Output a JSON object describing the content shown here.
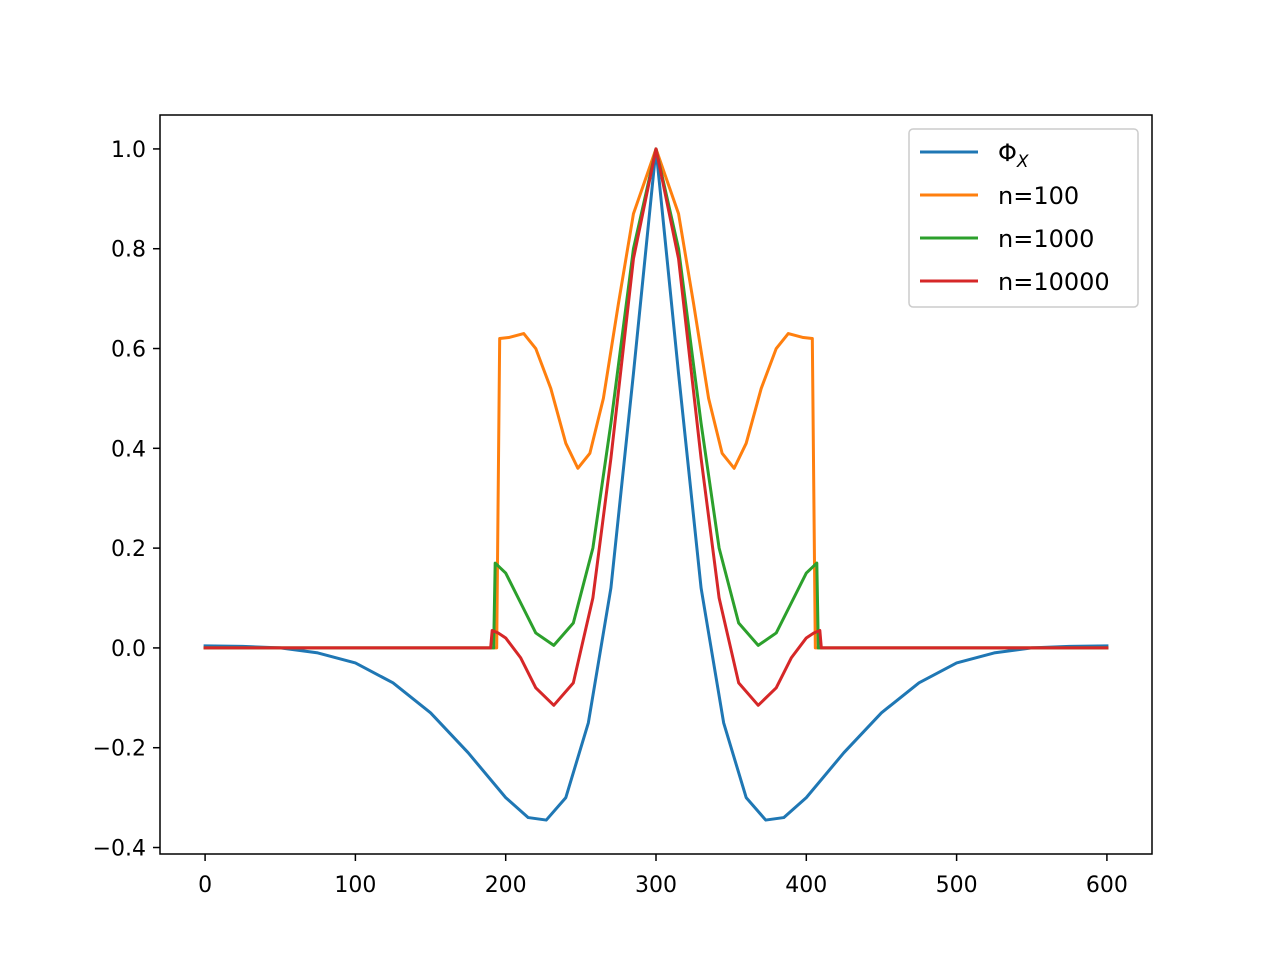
{
  "chart_data": {
    "type": "line",
    "title": "",
    "xlabel": "",
    "ylabel": "",
    "xlim": [
      -30,
      630
    ],
    "ylim": [
      -0.413,
      1.068
    ],
    "x_ticks": [
      0,
      100,
      200,
      300,
      400,
      500,
      600
    ],
    "y_ticks": [
      -0.4,
      -0.2,
      0.0,
      0.2,
      0.4,
      0.6,
      0.8,
      1.0
    ],
    "y_tick_labels": [
      "−0.4",
      "−0.2",
      "0.0",
      "0.2",
      "0.4",
      "0.6",
      "0.8",
      "1.0"
    ],
    "grid": false,
    "legend_position": "top-right",
    "series": [
      {
        "name": "ΦX",
        "color": "#1f77b4",
        "x": [
          0,
          25,
          50,
          75,
          100,
          125,
          150,
          175,
          200,
          215,
          227,
          240,
          255,
          270,
          285,
          300,
          315,
          330,
          345,
          360,
          373,
          385,
          400,
          425,
          450,
          475,
          500,
          525,
          550,
          575,
          600
        ],
        "y": [
          0.004,
          0.003,
          0.0,
          -0.01,
          -0.03,
          -0.07,
          -0.13,
          -0.21,
          -0.3,
          -0.34,
          -0.345,
          -0.3,
          -0.15,
          0.12,
          0.55,
          1.0,
          0.55,
          0.12,
          -0.15,
          -0.3,
          -0.345,
          -0.34,
          -0.3,
          -0.21,
          -0.13,
          -0.07,
          -0.03,
          -0.01,
          0.0,
          0.003,
          0.004
        ]
      },
      {
        "name": "n=100",
        "color": "#ff7f0e",
        "x": [
          0,
          100,
          194,
          196,
          202,
          212,
          220,
          230,
          240,
          248,
          256,
          265,
          275,
          285,
          300,
          315,
          325,
          335,
          344,
          352,
          360,
          370,
          380,
          388,
          398,
          404,
          406,
          500,
          600
        ],
        "y": [
          0.0,
          0.0,
          0.0,
          0.62,
          0.622,
          0.63,
          0.6,
          0.52,
          0.41,
          0.36,
          0.39,
          0.5,
          0.69,
          0.87,
          1.0,
          0.87,
          0.69,
          0.5,
          0.39,
          0.36,
          0.41,
          0.52,
          0.6,
          0.63,
          0.622,
          0.62,
          0.0,
          0.0,
          0.0
        ]
      },
      {
        "name": "n=1000",
        "color": "#2ca02c",
        "x": [
          0,
          100,
          192,
          193,
          200,
          210,
          220,
          232,
          245,
          258,
          270,
          285,
          300,
          315,
          330,
          342,
          355,
          368,
          380,
          390,
          400,
          407,
          408,
          500,
          600
        ],
        "y": [
          0.0,
          0.0,
          0.0,
          0.17,
          0.15,
          0.09,
          0.03,
          0.005,
          0.05,
          0.2,
          0.45,
          0.8,
          1.0,
          0.8,
          0.45,
          0.2,
          0.05,
          0.005,
          0.03,
          0.09,
          0.15,
          0.17,
          0.0,
          0.0,
          0.0
        ]
      },
      {
        "name": "n=10000",
        "color": "#d62728",
        "x": [
          0,
          100,
          190,
          191,
          195,
          200,
          210,
          220,
          232,
          245,
          258,
          270,
          285,
          300,
          315,
          330,
          342,
          355,
          368,
          380,
          390,
          400,
          405,
          409,
          410,
          500,
          600
        ],
        "y": [
          0.0,
          0.0,
          0.0,
          0.035,
          0.03,
          0.02,
          -0.02,
          -0.08,
          -0.115,
          -0.07,
          0.1,
          0.38,
          0.78,
          1.0,
          0.78,
          0.38,
          0.1,
          -0.07,
          -0.115,
          -0.08,
          -0.02,
          0.02,
          0.03,
          0.035,
          0.0,
          0.0,
          0.0
        ]
      }
    ]
  },
  "legend": {
    "items": [
      {
        "label": "Φ",
        "sub": "X",
        "color": "#1f77b4"
      },
      {
        "label": "n=100",
        "sub": "",
        "color": "#ff7f0e"
      },
      {
        "label": "n=1000",
        "sub": "",
        "color": "#2ca02c"
      },
      {
        "label": "n=10000",
        "sub": "",
        "color": "#d62728"
      }
    ]
  }
}
